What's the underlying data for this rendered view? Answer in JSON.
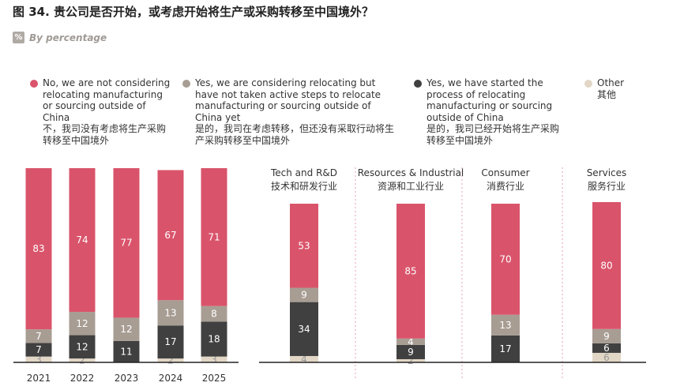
{
  "title": "图 34. 贵公司是否开始，或考虑开始将生产或采购转移至中国境外？",
  "subtitle": "By percentage",
  "unit_icon": "%",
  "colors": {
    "not_considering": "#d9546b",
    "considering": "#a89d93",
    "started": "#404040",
    "other": "#e2d7c6"
  },
  "legend": [
    {
      "en": "No, we are not considering relocating manufacturing or sourcing outside of China",
      "zh": "不，我司没有考虑将生产采购转移至中国境外"
    },
    {
      "en": "Yes, we are considering relocating but have not taken active steps to relocate manufacturing or sourcing outside of China yet",
      "zh": "是的，我司在考虑转移，但还没有采取行动将生产采购转移至中国境外"
    },
    {
      "en": "Yes, we have started the process of relocating manufacturing or sourcing outside of China",
      "zh": "是的，我司已经开始将生产采购转移至中国境外"
    },
    {
      "en": "Other",
      "zh": "其他"
    }
  ],
  "chart_data": [
    {
      "type": "bar",
      "stacked": true,
      "categories": [
        "2021",
        "2022",
        "2023",
        "2024",
        "2025"
      ],
      "series": [
        {
          "name": "No, we are not considering relocating manufacturing or sourcing outside of China",
          "values": [
            83,
            74,
            77,
            67,
            71
          ]
        },
        {
          "name": "Yes, we are considering relocating but have not taken active steps",
          "values": [
            7,
            12,
            12,
            13,
            8
          ]
        },
        {
          "name": "Yes, we have started the process of relocating",
          "values": [
            7,
            12,
            11,
            17,
            18
          ]
        },
        {
          "name": "Other",
          "values": [
            3,
            2,
            0,
            2,
            3
          ]
        }
      ]
    },
    {
      "type": "bar",
      "stacked": true,
      "categories": [
        "Tech and R&D",
        "Resources & Industrial",
        "Consumer",
        "Services"
      ],
      "categories_zh": [
        "技术和研发行业",
        "资源和工业行业",
        "消费行业",
        "服务行业"
      ],
      "series": [
        {
          "name": "No, we are not considering relocating manufacturing or sourcing outside of China",
          "values": [
            53,
            85,
            70,
            80
          ]
        },
        {
          "name": "Yes, we are considering relocating but have not taken active steps",
          "values": [
            9,
            4,
            13,
            9
          ]
        },
        {
          "name": "Yes, we have started the process of relocating",
          "values": [
            34,
            9,
            17,
            6
          ]
        },
        {
          "name": "Other",
          "values": [
            4,
            2,
            0,
            6
          ]
        }
      ]
    }
  ]
}
